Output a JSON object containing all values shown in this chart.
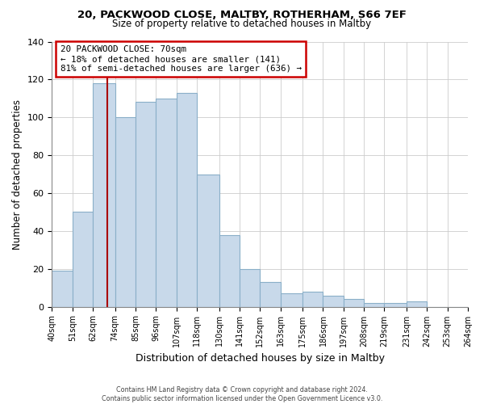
{
  "title1": "20, PACKWOOD CLOSE, MALTBY, ROTHERHAM, S66 7EF",
  "title2": "Size of property relative to detached houses in Maltby",
  "xlabel": "Distribution of detached houses by size in Maltby",
  "ylabel": "Number of detached properties",
  "bar_edges": [
    40,
    51,
    62,
    74,
    85,
    96,
    107,
    118,
    130,
    141,
    152,
    163,
    175,
    186,
    197,
    208,
    219,
    231,
    242,
    253,
    264
  ],
  "bar_heights": [
    19,
    50,
    118,
    100,
    108,
    110,
    113,
    70,
    38,
    20,
    13,
    7,
    8,
    6,
    4,
    2,
    2,
    3,
    0,
    0
  ],
  "bar_color": "#c8d9ea",
  "bar_edgecolor": "#8aafc8",
  "tick_labels": [
    "40sqm",
    "51sqm",
    "62sqm",
    "74sqm",
    "85sqm",
    "96sqm",
    "107sqm",
    "118sqm",
    "130sqm",
    "141sqm",
    "152sqm",
    "163sqm",
    "175sqm",
    "186sqm",
    "197sqm",
    "208sqm",
    "219sqm",
    "231sqm",
    "242sqm",
    "253sqm",
    "264sqm"
  ],
  "vline_x": 70,
  "vline_color": "#aa0000",
  "annotation_line1": "20 PACKWOOD CLOSE: 70sqm",
  "annotation_line2": "← 18% of detached houses are smaller (141)",
  "annotation_line3": "81% of semi-detached houses are larger (636) →",
  "ylim": [
    0,
    140
  ],
  "yticks": [
    0,
    20,
    40,
    60,
    80,
    100,
    120,
    140
  ],
  "footer1": "Contains HM Land Registry data © Crown copyright and database right 2024.",
  "footer2": "Contains public sector information licensed under the Open Government Licence v3.0."
}
